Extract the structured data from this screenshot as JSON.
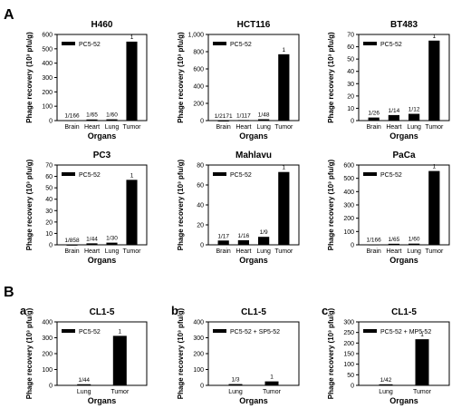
{
  "panel_labels": {
    "A": "A",
    "B": "B"
  },
  "chart_data": [
    {
      "type": "bar",
      "panel": "A",
      "title": "H460",
      "xlabel": "Organs",
      "ylabel": "Phage recovery (10³ pfu/g)",
      "categories": [
        "Brain",
        "Heart",
        "Lung",
        "Tumor"
      ],
      "ylim": [
        0,
        600
      ],
      "yticks": [
        0,
        100,
        200,
        300,
        400,
        500,
        600
      ],
      "series": [
        {
          "name": "PC5-52",
          "values": [
            3,
            8,
            9,
            550
          ]
        }
      ],
      "data_labels": [
        "1/166",
        "1/65",
        "1/60",
        "1"
      ],
      "legend": "top-left"
    },
    {
      "type": "bar",
      "panel": "A",
      "title": "HCT116",
      "xlabel": "Organs",
      "ylabel": "Phage recovery (10³ pfu/g)",
      "categories": [
        "Brain",
        "Heart",
        "Lung",
        "Tumor"
      ],
      "ylim": [
        0,
        1000
      ],
      "yticks": [
        0,
        200,
        400,
        600,
        800,
        1000
      ],
      "tick_format": "comma",
      "series": [
        {
          "name": "PC5-52",
          "values": [
            0.4,
            6.5,
            16,
            770
          ]
        }
      ],
      "data_labels": [
        "1/2171",
        "1/117",
        "1/48",
        "1"
      ],
      "legend": "top-left"
    },
    {
      "type": "bar",
      "panel": "A",
      "title": "BT483",
      "xlabel": "Organs",
      "ylabel": "Phage recovery (10³ pfu/g)",
      "categories": [
        "Brain",
        "Heart",
        "Lung",
        "Tumor"
      ],
      "ylim": [
        0,
        70
      ],
      "yticks": [
        0,
        10,
        20,
        30,
        40,
        50,
        60,
        70
      ],
      "series": [
        {
          "name": "PC5-52",
          "values": [
            2.5,
            4.5,
            5.5,
            65
          ]
        }
      ],
      "data_labels": [
        "1/26",
        "1/14",
        "1/12",
        "1"
      ],
      "legend": "top-left"
    },
    {
      "type": "bar",
      "panel": "A",
      "title": "PC3",
      "xlabel": "Organs",
      "ylabel": "Phage recovery (10³ pfu/g)",
      "categories": [
        "Brain",
        "Heart",
        "Lung",
        "Tumor"
      ],
      "ylim": [
        0,
        70
      ],
      "yticks": [
        0,
        10,
        20,
        30,
        40,
        50,
        60,
        70
      ],
      "series": [
        {
          "name": "PC5-52",
          "values": [
            0.1,
            1.3,
            1.9,
            57
          ]
        }
      ],
      "data_labels": [
        "1/858",
        "1/44",
        "1/30",
        "1"
      ],
      "legend": "top-left"
    },
    {
      "type": "bar",
      "panel": "A",
      "title": "Mahlavu",
      "xlabel": "Organs",
      "ylabel": "Phage recovery (10³ pfu/g)",
      "categories": [
        "Brain",
        "Heart",
        "Lung",
        "Tumor"
      ],
      "ylim": [
        0,
        80
      ],
      "yticks": [
        0,
        20,
        40,
        60,
        80
      ],
      "series": [
        {
          "name": "PC5-52",
          "values": [
            4.3,
            4.6,
            8,
            73
          ]
        }
      ],
      "data_labels": [
        "1/17",
        "1/16",
        "1/9",
        "1"
      ],
      "legend": "top-left"
    },
    {
      "type": "bar",
      "panel": "A",
      "title": "PaCa",
      "xlabel": "Organs",
      "ylabel": "Phage recovery (10³ pfu/g)",
      "categories": [
        "Brain",
        "Heart",
        "Lung",
        "Tumor"
      ],
      "ylim": [
        0,
        600
      ],
      "yticks": [
        0,
        100,
        200,
        300,
        400,
        500,
        600
      ],
      "series": [
        {
          "name": "PC5-52",
          "values": [
            3,
            8,
            9,
            555
          ]
        }
      ],
      "data_labels": [
        "1/166",
        "1/65",
        "1/60",
        "1"
      ],
      "legend": "top-left"
    },
    {
      "type": "bar",
      "panel": "B",
      "sub_label": "a",
      "title": "CL1-5",
      "xlabel": "Organs",
      "ylabel": "Phage recovery (10³ pfu/g)",
      "categories": [
        "Lung",
        "Tumor"
      ],
      "ylim": [
        0,
        400
      ],
      "yticks": [
        0,
        100,
        200,
        300,
        400
      ],
      "series": [
        {
          "name": "PC5-52",
          "values": [
            7,
            312
          ]
        }
      ],
      "data_labels": [
        "1/44",
        "1"
      ],
      "legend": "top-left"
    },
    {
      "type": "bar",
      "panel": "B",
      "sub_label": "b",
      "title": "CL1-5",
      "xlabel": "Organs",
      "ylabel": "Phage recovery (10³ pfu/g)",
      "categories": [
        "Lung",
        "Tumor"
      ],
      "ylim": [
        0,
        400
      ],
      "yticks": [
        0,
        100,
        200,
        300,
        400
      ],
      "series": [
        {
          "name": "PC5-52 + SP5-52",
          "values": [
            8,
            25
          ]
        }
      ],
      "data_labels": [
        "1/3",
        "1"
      ],
      "legend": "top-left"
    },
    {
      "type": "bar",
      "panel": "B",
      "sub_label": "c",
      "title": "CL1-5",
      "xlabel": "Organs",
      "ylabel": "Phage recovery (10³ pfu/g)",
      "categories": [
        "Lung",
        "Tumor"
      ],
      "ylim": [
        0,
        300
      ],
      "yticks": [
        0,
        50,
        100,
        150,
        200,
        250,
        300
      ],
      "series": [
        {
          "name": "PC5-52 + MP5-52",
          "values": [
            5,
            218
          ]
        }
      ],
      "data_labels": [
        "1/42",
        "1"
      ],
      "legend": "top-left"
    }
  ]
}
